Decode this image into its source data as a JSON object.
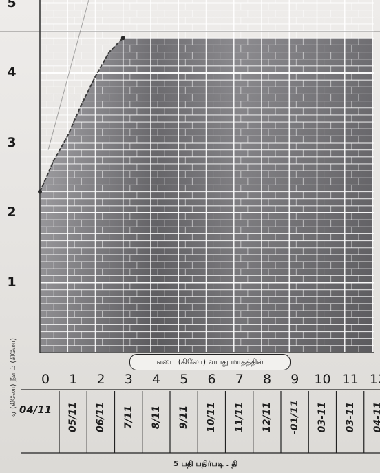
{
  "chart_data": {
    "type": "area",
    "title": "",
    "xlabel": "எடை (கிலோ) வயது மாதத்தில்",
    "ylabel": "ஏ (கிலோ) நீளம் (கிலோ)",
    "x": [
      0,
      0.5,
      1,
      1.5,
      2,
      2.5,
      3,
      4,
      5,
      6,
      7,
      8,
      9,
      10,
      11,
      12
    ],
    "series": [
      {
        "values": [
          2.3,
          2.75,
          3.1,
          3.55,
          3.95,
          4.3,
          4.5,
          4.5,
          4.5,
          4.5,
          4.5,
          4.5,
          4.5,
          4.5,
          4.5,
          4.5
        ]
      }
    ],
    "xlim": [
      0,
      12
    ],
    "ylim": [
      0,
      5
    ],
    "xticks": [
      "0",
      "1",
      "2",
      "3",
      "4",
      "5",
      "6",
      "7",
      "8",
      "9",
      "10",
      "11",
      "12"
    ],
    "yticks": [
      "1",
      "2",
      "3",
      "4",
      "5"
    ],
    "grid": true,
    "colors": {
      "fill": "#6f6e72",
      "fill_light": "#a9a8ac",
      "grid": "#ffffff",
      "paper": "#e6e4e1",
      "ink": "#1c1c1c"
    }
  },
  "date_row": {
    "first": "04/11",
    "entries": [
      "05/11",
      "06/11",
      "7/11",
      "8/11",
      "9/11",
      "10/11",
      "11/11",
      "12/11",
      "-01/11",
      "03-11",
      "03-11",
      "04-11"
    ]
  },
  "bottom_caption": "5 பதி பதிர்படி . தி"
}
